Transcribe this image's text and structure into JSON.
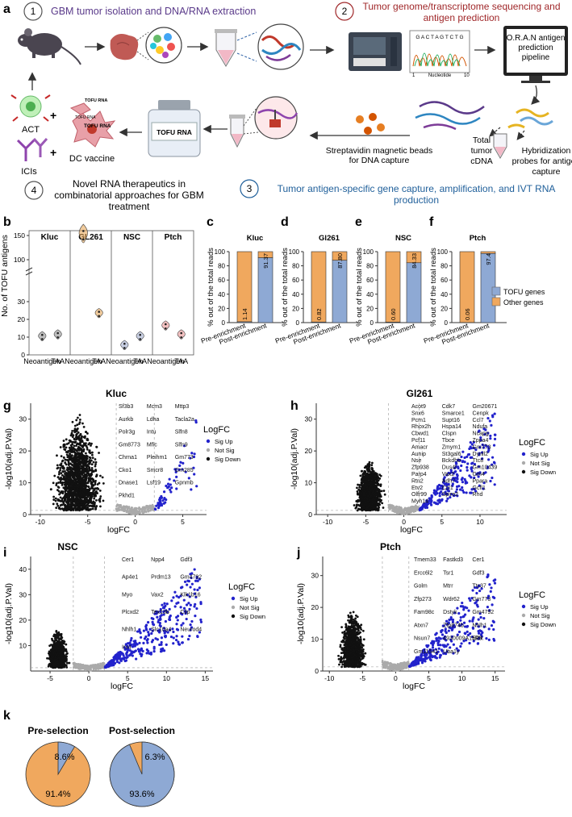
{
  "panel_a": {
    "letter": "a",
    "steps": {
      "s1": {
        "num": "1",
        "title": "GBM tumor isolation and DNA/RNA extraction"
      },
      "s2": {
        "num": "2",
        "title_line1": "Tumor genome/transcriptome sequencing and",
        "title_line2": "antigen prediction"
      },
      "s3": {
        "num": "3",
        "title_line1": "Tumor antigen-specific gene capture, amplification, and IVT RNA",
        "title_line2": "production"
      },
      "s4": {
        "num": "4",
        "title_line1": "Novel RNA therapeutics in",
        "title_line2": "combinatorial approaches for GBM",
        "title_line3": "treatment"
      }
    },
    "seq_text": "G A C T A G T C T G",
    "seq_axis_start": "1",
    "seq_axis_label": "Nucleotide",
    "seq_axis_end": "10",
    "pipeline_line1": "O.R.A.N antigen",
    "pipeline_line2": "prediction",
    "pipeline_line3": "pipeline",
    "hybrid_line1": "Hybridization",
    "hybrid_line2": "probes for antigen",
    "hybrid_line3": "capture",
    "cdna_line1": "Total",
    "cdna_line2": "tumor",
    "cdna_line3": "cDNA",
    "beads_line1": "Streptavidin magnetic beads",
    "beads_line2": "for DNA capture",
    "bottle_label": "TOFU RNA",
    "tofu_rna_1": "TOFU RNA",
    "tofu_rna_2": "TOFU RNA",
    "tofu_rna_3": "TOFU RNA",
    "act_label": "ACT",
    "icis_label": "ICIs",
    "dc_label": "DC vaccine",
    "plus": "+"
  },
  "panel_b": {
    "letter": "b",
    "ylabel": "No. of TOFU antigens",
    "chart_data": {
      "type": "violin",
      "groups": [
        "Kluc",
        "GL261",
        "NSC",
        "Ptch"
      ],
      "categories": [
        "Neoantigen",
        "TAA"
      ],
      "ytick_labels": [
        "0",
        "10",
        "20",
        "30",
        "100",
        "150"
      ],
      "y_break": "broken axis between 30 and 100",
      "series": [
        {
          "group": "Kluc",
          "Neoantigen": 10,
          "TAA": 11
        },
        {
          "group": "GL261",
          "Neoantigen": 150,
          "TAA": 23
        },
        {
          "group": "NSC",
          "Neoantigen": 5,
          "TAA": 10
        },
        {
          "group": "Ptch",
          "Neoantigen": 16,
          "TAA": 11
        }
      ]
    }
  },
  "stacked_panels": [
    {
      "letter": "c",
      "title": "Kluc",
      "pre": 1.14,
      "post": 91.37,
      "pre_label": "1.14",
      "post_label": "91.37"
    },
    {
      "letter": "d",
      "title": "Gl261",
      "pre": 0.82,
      "post": 87.8,
      "pre_label": "0.82",
      "post_label": "87.80"
    },
    {
      "letter": "e",
      "title": "NSC",
      "pre": 0.6,
      "post": 84.33,
      "pre_label": "0.60",
      "post_label": "84.33"
    },
    {
      "letter": "f",
      "title": "Ptch",
      "pre": 0.06,
      "post": 97.4,
      "pre_label": "0.06",
      "post_label": "97.4"
    }
  ],
  "stacked_common": {
    "ylabel": "% out of the total reads",
    "yticks": [
      "0",
      "20",
      "40",
      "60",
      "80",
      "100"
    ],
    "xlabels": [
      "Pre-enrichment",
      "Post-enrichment"
    ],
    "legend": [
      {
        "label": "TOFU genes",
        "color": "#8ea9d4"
      },
      {
        "label": "Other genes",
        "color": "#f0a85e"
      }
    ],
    "chart_data": {
      "type": "bar",
      "categories": [
        "Pre-enrichment",
        "Post-enrichment"
      ],
      "series": [
        {
          "name": "Kluc",
          "TOFU genes": [
            1.14,
            91.37
          ]
        },
        {
          "name": "Gl261",
          "TOFU genes": [
            0.82,
            87.8
          ]
        },
        {
          "name": "NSC",
          "TOFU genes": [
            0.6,
            84.33
          ]
        },
        {
          "name": "Ptch",
          "TOFU genes": [
            0.06,
            97.4
          ]
        }
      ],
      "ylim": [
        0,
        100
      ]
    }
  },
  "volcano_common": {
    "ylabel": "-log10(adj.P.Val)",
    "xlabel": "logFC",
    "legend_title": "LogFC",
    "legend": [
      {
        "label": "Sig Up",
        "color": "#2222cc"
      },
      {
        "label": "Not Sig",
        "color": "#aaaaaa"
      },
      {
        "label": "Sig Down",
        "color": "#111111"
      }
    ]
  },
  "volcano_panels": [
    {
      "letter": "g",
      "title": "Kluc",
      "xticks": [
        "-10",
        "-5",
        "0",
        "5"
      ],
      "yticks": [
        "0",
        "10",
        "20",
        "30"
      ],
      "chart_data": {
        "type": "scatter",
        "xlim": [
          -11,
          7.5
        ],
        "ylim": [
          0,
          35
        ],
        "down_center": -6,
        "down_spread": 3.2,
        "down_peak": 31,
        "up_max_x": 6.5,
        "up_peak": 30,
        "n_down": 1500,
        "n_up": 60,
        "thresholds": {
          "logFC": [
            -2,
            2
          ],
          "p": 1.3
        }
      },
      "genes": [
        "Sf3b3",
        "Mcm3",
        "Mttp3",
        "Aurkb",
        "Ldha",
        "Tacla2a",
        "Polr3g",
        "Intu",
        "Slfn8",
        "Gm8773",
        "Mfic",
        "Slfn9",
        "Chrna1",
        "Pleihm1",
        "Gm773",
        "Cko1",
        "Smcr8",
        "Gm285",
        "Dnase1",
        "Lsf19",
        "Gpnmb",
        "Pkhd1"
      ]
    },
    {
      "letter": "h",
      "title": "Gl261",
      "xticks": [
        "-10",
        "-5",
        "0",
        "5",
        "10"
      ],
      "yticks": [
        "0",
        "10",
        "20",
        "30"
      ],
      "chart_data": {
        "type": "scatter",
        "xlim": [
          -11.5,
          13.5
        ],
        "ylim": [
          0,
          35
        ],
        "down_center": -4.5,
        "down_spread": 2.3,
        "down_peak": 17,
        "up_max_x": 12,
        "up_peak": 32,
        "n_down": 1200,
        "n_up": 260,
        "thresholds": {
          "logFC": [
            -2,
            2
          ],
          "p": 1.3
        }
      },
      "genes": [
        "Acot9",
        "Cdk7",
        "Gm20671",
        "Snx6",
        "Smarce1",
        "Cenpk",
        "Pcm1",
        "Supt16",
        "Ccl7",
        "Rhox2h",
        "Hspa14",
        "Ndufa",
        "Cbwd1",
        "Clspn",
        "Ncapg",
        "Pcf11",
        "Tbce",
        "Zppa4",
        "Amacr",
        "Zmym1",
        "Gm773",
        "Aunip",
        "St3gal6",
        "Dynll2",
        "Nse",
        "Bckdhb",
        "Ttc8",
        "Zfp938",
        "Dus4l",
        "Gm10439",
        "Parp4",
        "Vax2",
        "Gm4",
        "Rtn2",
        "Adh7",
        "Ppara",
        "Etv2",
        "Ccl1",
        "Gcfl1",
        "Olfr99",
        "Spire2",
        "Rhd",
        "Myh14"
      ]
    },
    {
      "letter": "i",
      "title": "NSC",
      "xticks": [
        "-5",
        "0",
        "5",
        "10",
        "15"
      ],
      "yticks": [
        "10",
        "20",
        "30",
        "40"
      ],
      "chart_data": {
        "type": "scatter",
        "xlim": [
          -7.5,
          16
        ],
        "ylim": [
          0,
          45
        ],
        "down_center": -4,
        "down_spread": 1.7,
        "down_peak": 16,
        "up_max_x": 14.5,
        "up_peak": 42,
        "n_down": 700,
        "n_up": 350,
        "thresholds": {
          "logFC": [
            -2,
            2
          ],
          "p": 1.3
        }
      },
      "genes": [
        "Cer1",
        "Npp4",
        "Gdf3",
        "Ap4e1",
        "Prdm13",
        "Gm4792",
        "Myo",
        "Vax2",
        "Klk1b16",
        "Plcxd2",
        "Tex13b",
        "Cilp",
        "Nhlh1",
        "Slc10a4",
        "Neurod4",
        "Irx4"
      ]
    },
    {
      "letter": "j",
      "title": "Ptch",
      "xticks": [
        "-10",
        "-5",
        "0",
        "5",
        "10",
        "15"
      ],
      "yticks": [
        "0",
        "10",
        "20",
        "30"
      ],
      "chart_data": {
        "type": "scatter",
        "xlim": [
          -11,
          16.5
        ],
        "ylim": [
          0,
          36
        ],
        "down_center": -6.5,
        "down_spread": 2.5,
        "down_peak": 19,
        "up_max_x": 15,
        "up_peak": 33,
        "n_down": 900,
        "n_up": 300,
        "thresholds": {
          "logFC": [
            -2,
            2
          ],
          "p": 1.3
        }
      },
      "genes": [
        "Tmem33",
        "Fastkd3",
        "Cer1",
        "Ercc6l2",
        "Tsr1",
        "Gdf3",
        "Golm",
        "Mtrr",
        "Ttc37",
        "Zfp273",
        "Wdr62",
        "Gm773",
        "Fam98c",
        "Dstyk",
        "Gm4792",
        "Atxn7",
        "Zfp874b",
        "Nhlh1",
        "Nsun7",
        "4930009A15Rik",
        "Elf3",
        "Gm11541",
        "Uba1y"
      ]
    }
  ],
  "panel_k": {
    "letter": "k",
    "chart_data": {
      "type": "pie",
      "charts": [
        {
          "title": "Pre-selection",
          "values": [
            8.6,
            91.4
          ],
          "labels": [
            "8.6%",
            "91.4%"
          ]
        },
        {
          "title": "Post-selection",
          "values": [
            93.6,
            6.3
          ],
          "labels": [
            "93.6%",
            "6.3%"
          ]
        }
      ]
    }
  },
  "colors": {
    "tofu": "#8ea9d4",
    "other": "#f0a85e",
    "purple": "#5a3a8a",
    "red": "#a0282a",
    "blue": "#1f5f9a"
  }
}
